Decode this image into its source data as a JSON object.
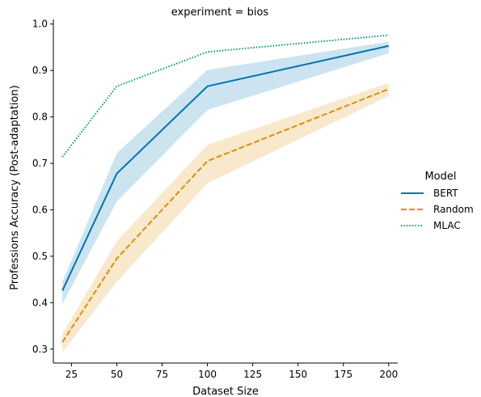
{
  "chart_data": {
    "type": "line",
    "title": "experiment = bios",
    "xlabel": "Dataset Size",
    "ylabel": "Professions Accuracy (Post-adaptation)",
    "xlim": [
      15,
      205
    ],
    "ylim": [
      0.27,
      1.01
    ],
    "xticks": [
      25,
      50,
      75,
      100,
      125,
      150,
      175,
      200
    ],
    "yticks": [
      0.3,
      0.4,
      0.5,
      0.6,
      0.7,
      0.8,
      0.9,
      1.0
    ],
    "xtick_labels": [
      "25",
      "50",
      "75",
      "100",
      "125",
      "150",
      "175",
      "200"
    ],
    "ytick_labels": [
      "0.3",
      "0.4",
      "0.5",
      "0.6",
      "0.7",
      "0.8",
      "0.9",
      "1.0"
    ],
    "x": [
      20,
      50,
      100,
      200
    ],
    "grid": false,
    "legend": {
      "title": "Model",
      "placement": "right"
    },
    "series": [
      {
        "name": "BERT",
        "values": [
          0.426,
          0.678,
          0.866,
          0.953
        ],
        "lower": [
          0.397,
          0.618,
          0.815,
          0.937
        ],
        "upper": [
          0.445,
          0.722,
          0.901,
          0.962
        ],
        "color": "#0173b2",
        "dash": "solid"
      },
      {
        "name": "Random",
        "values": [
          0.315,
          0.495,
          0.705,
          0.86
        ],
        "lower": [
          0.293,
          0.445,
          0.657,
          0.845
        ],
        "upper": [
          0.333,
          0.532,
          0.74,
          0.873
        ],
        "color": "#de8f05",
        "dash": "dashed"
      },
      {
        "name": "MLAC",
        "values": [
          0.714,
          0.866,
          0.94,
          0.976
        ],
        "color": "#029e73",
        "dash": "dotted"
      }
    ]
  }
}
